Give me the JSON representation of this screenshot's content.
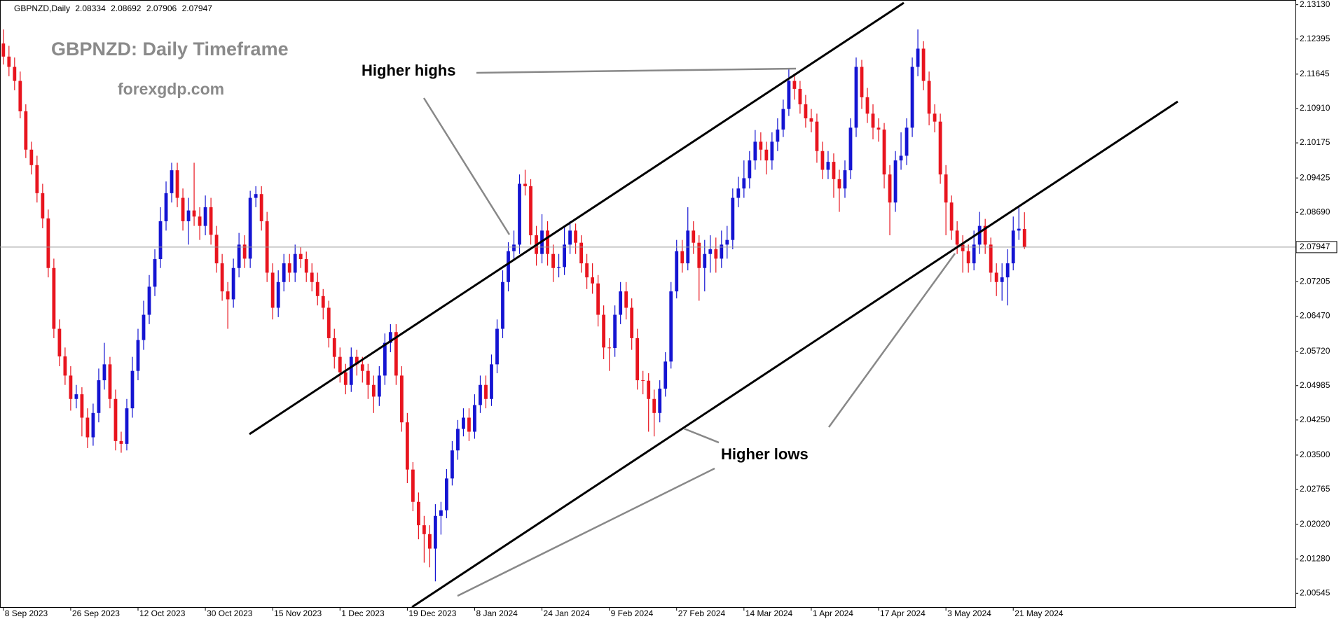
{
  "chart_data": {
    "type": "candlestick",
    "symbol": "GBPNZD,Daily",
    "title": "GBPNZD: Daily Timeframe",
    "subtitle": "forexgdp.com",
    "annotations": [
      "Higher highs",
      "Higher lows"
    ],
    "up_color": "#1414d2",
    "down_color": "#e8141e",
    "price_line": true,
    "ylim": [
      2.0025,
      2.1323
    ],
    "xlim": [
      -0.6,
      230.3
    ],
    "yticks": [
      {
        "value": 2.1313,
        "label": "2.13130"
      },
      {
        "value": 2.12395,
        "label": "2.12395"
      },
      {
        "value": 2.11645,
        "label": "2.11645"
      },
      {
        "value": 2.1091,
        "label": "2.10910"
      },
      {
        "value": 2.10175,
        "label": "2.10175"
      },
      {
        "value": 2.09425,
        "label": "2.09425"
      },
      {
        "value": 2.0869,
        "label": "2.08690"
      },
      {
        "value": 2.07205,
        "label": "2.07205"
      },
      {
        "value": 2.0647,
        "label": "2.06470"
      },
      {
        "value": 2.0572,
        "label": "2.05720"
      },
      {
        "value": 2.04985,
        "label": "2.04985"
      },
      {
        "value": 2.0425,
        "label": "2.04250"
      },
      {
        "value": 2.035,
        "label": "2.03500"
      },
      {
        "value": 2.02765,
        "label": "2.02765"
      },
      {
        "value": 2.0202,
        "label": "2.02020"
      },
      {
        "value": 2.0128,
        "label": "2.01280"
      },
      {
        "value": 2.00545,
        "label": "2.00545"
      }
    ],
    "xticks": [
      {
        "value": 0,
        "label": "8 Sep 2023"
      },
      {
        "value": 12,
        "label": "26 Sep 2023"
      },
      {
        "value": 24,
        "label": "12 Oct 2023"
      },
      {
        "value": 36,
        "label": "30 Oct 2023"
      },
      {
        "value": 48,
        "label": "15 Nov 2023"
      },
      {
        "value": 60,
        "label": "1 Dec 2023"
      },
      {
        "value": 72,
        "label": "19 Dec 2023"
      },
      {
        "value": 84,
        "label": "8 Jan 2024"
      },
      {
        "value": 96,
        "label": "24 Jan 2024"
      },
      {
        "value": 108,
        "label": "9 Feb 2024"
      },
      {
        "value": 120,
        "label": "27 Feb 2024"
      },
      {
        "value": 132,
        "label": "14 Mar 2024"
      },
      {
        "value": 144,
        "label": "1 Apr 2024"
      },
      {
        "value": 156,
        "label": "17 Apr 2024"
      },
      {
        "value": 168,
        "label": "3 May 2024"
      },
      {
        "value": 180,
        "label": "21 May 2024"
      }
    ],
    "ohlc": [
      [
        2.123,
        2.126,
        2.1185,
        2.1202
      ],
      [
        2.1202,
        2.1225,
        2.116,
        2.118
      ],
      [
        2.118,
        2.12,
        2.113,
        2.115
      ],
      [
        2.115,
        2.117,
        2.107,
        2.1085
      ],
      [
        2.1085,
        2.11,
        2.0985,
        2.1003
      ],
      [
        2.1003,
        2.102,
        2.095,
        2.097
      ],
      [
        2.097,
        2.099,
        2.089,
        2.091
      ],
      [
        2.091,
        2.093,
        2.0835,
        2.0856
      ],
      [
        2.0856,
        2.0875,
        2.073,
        2.075
      ],
      [
        2.075,
        2.077,
        2.06,
        2.062
      ],
      [
        2.062,
        2.064,
        2.054,
        2.0561
      ],
      [
        2.0561,
        2.058,
        2.05,
        2.052
      ],
      [
        2.052,
        2.054,
        2.0445,
        2.047
      ],
      [
        2.047,
        2.05,
        2.045,
        2.048
      ],
      [
        2.048,
        2.0495,
        2.039,
        2.043
      ],
      [
        2.043,
        2.045,
        2.0365,
        2.0388
      ],
      [
        2.0388,
        2.046,
        2.037,
        2.044
      ],
      [
        2.044,
        2.0535,
        2.042,
        2.051
      ],
      [
        2.051,
        2.059,
        2.049,
        2.0544
      ],
      [
        2.0544,
        2.056,
        2.045,
        2.047
      ],
      [
        2.047,
        2.049,
        2.036,
        2.038
      ],
      [
        2.038,
        2.04,
        2.0355,
        2.0374
      ],
      [
        2.0374,
        2.047,
        2.036,
        2.045
      ],
      [
        2.045,
        2.056,
        2.043,
        2.053
      ],
      [
        2.053,
        2.062,
        2.051,
        2.0596
      ],
      [
        2.0596,
        2.068,
        2.0575,
        2.065
      ],
      [
        2.065,
        2.0735,
        2.063,
        2.071
      ],
      [
        2.071,
        2.079,
        2.069,
        2.0769
      ],
      [
        2.0769,
        2.088,
        2.075,
        2.085
      ],
      [
        2.085,
        2.0935,
        2.083,
        2.091
      ],
      [
        2.091,
        2.0975,
        2.089,
        2.0959
      ],
      [
        2.0959,
        2.0975,
        2.088,
        2.09
      ],
      [
        2.09,
        2.092,
        2.083,
        2.085
      ],
      [
        2.085,
        2.09,
        2.08,
        2.0873
      ],
      [
        2.0873,
        2.0975,
        2.084,
        2.086
      ],
      [
        2.086,
        2.088,
        2.081,
        2.084
      ],
      [
        2.084,
        2.0905,
        2.082,
        2.088
      ],
      [
        2.088,
        2.09,
        2.08,
        2.0821
      ],
      [
        2.0821,
        2.084,
        2.074,
        2.076
      ],
      [
        2.076,
        2.078,
        2.068,
        2.07
      ],
      [
        2.07,
        2.072,
        2.062,
        2.0683
      ],
      [
        2.0683,
        2.077,
        2.0665,
        2.075
      ],
      [
        2.075,
        2.0825,
        2.073,
        2.08
      ],
      [
        2.08,
        2.082,
        2.075,
        2.077
      ],
      [
        2.077,
        2.0915,
        2.075,
        2.09
      ],
      [
        2.09,
        2.0925,
        2.088,
        2.0908
      ],
      [
        2.0908,
        2.0925,
        2.083,
        2.085
      ],
      [
        2.085,
        2.087,
        2.072,
        2.074
      ],
      [
        2.074,
        2.076,
        2.064,
        2.0665
      ],
      [
        2.0665,
        2.0745,
        2.0645,
        2.072
      ],
      [
        2.072,
        2.078,
        2.07,
        2.076
      ],
      [
        2.076,
        2.078,
        2.072,
        2.074
      ],
      [
        2.074,
        2.08,
        2.072,
        2.078
      ],
      [
        2.078,
        2.0795,
        2.075,
        2.0769
      ],
      [
        2.0769,
        2.0785,
        2.072,
        2.074
      ],
      [
        2.074,
        2.076,
        2.07,
        2.072
      ],
      [
        2.072,
        2.074,
        2.067,
        2.069
      ],
      [
        2.069,
        2.0705,
        2.064,
        2.0665
      ],
      [
        2.0665,
        2.068,
        2.058,
        2.06
      ],
      [
        2.06,
        2.062,
        2.0535,
        2.056
      ],
      [
        2.056,
        2.058,
        2.0505,
        2.0527
      ],
      [
        2.0527,
        2.0545,
        2.048,
        2.05
      ],
      [
        2.05,
        2.058,
        2.0485,
        2.056
      ],
      [
        2.056,
        2.0575,
        2.052,
        2.0544
      ],
      [
        2.0544,
        2.056,
        2.0505,
        2.053
      ],
      [
        2.053,
        2.0545,
        2.047,
        2.05
      ],
      [
        2.05,
        2.052,
        2.044,
        2.0475
      ],
      [
        2.0475,
        2.054,
        2.0455,
        2.052
      ],
      [
        2.052,
        2.061,
        2.05,
        2.059
      ],
      [
        2.059,
        2.063,
        2.057,
        2.0613
      ],
      [
        2.0613,
        2.063,
        2.05,
        2.052
      ],
      [
        2.052,
        2.054,
        2.04,
        2.042
      ],
      [
        2.042,
        2.044,
        2.029,
        2.0319
      ],
      [
        2.0319,
        2.0335,
        2.023,
        2.025
      ],
      [
        2.025,
        2.027,
        2.017,
        2.02
      ],
      [
        2.02,
        2.022,
        2.012,
        2.0181
      ],
      [
        2.0181,
        2.02,
        2.011,
        2.015
      ],
      [
        2.015,
        2.0245,
        2.008,
        2.022
      ],
      [
        2.022,
        2.025,
        2.018,
        2.0232
      ],
      [
        2.0232,
        2.032,
        2.0215,
        2.03
      ],
      [
        2.03,
        2.038,
        2.0285,
        2.036
      ],
      [
        2.036,
        2.0425,
        2.034,
        2.0406
      ],
      [
        2.0406,
        2.045,
        2.039,
        2.043
      ],
      [
        2.043,
        2.045,
        2.038,
        2.04
      ],
      [
        2.04,
        2.048,
        2.0385,
        2.0457
      ],
      [
        2.0457,
        2.052,
        2.044,
        2.05
      ],
      [
        2.05,
        2.052,
        2.045,
        2.047
      ],
      [
        2.047,
        2.0565,
        2.0455,
        2.0544
      ],
      [
        2.0544,
        2.064,
        2.0525,
        2.062
      ],
      [
        2.062,
        2.0745,
        2.06,
        2.072
      ],
      [
        2.072,
        2.0805,
        2.07,
        2.0786
      ],
      [
        2.0786,
        2.083,
        2.0765,
        2.08
      ],
      [
        2.08,
        2.095,
        2.078,
        2.093
      ],
      [
        2.093,
        2.096,
        2.0905,
        2.0925
      ],
      [
        2.0925,
        2.094,
        2.08,
        2.082
      ],
      [
        2.082,
        2.084,
        2.0755,
        2.078
      ],
      [
        2.078,
        2.0865,
        2.076,
        2.083
      ],
      [
        2.083,
        2.085,
        2.0755,
        2.078
      ],
      [
        2.078,
        2.08,
        2.072,
        2.075
      ],
      [
        2.075,
        2.078,
        2.073,
        2.0752
      ],
      [
        2.0752,
        2.084,
        2.0735,
        2.08
      ],
      [
        2.08,
        2.085,
        2.078,
        2.083
      ],
      [
        2.083,
        2.0845,
        2.078,
        2.0804
      ],
      [
        2.0804,
        2.082,
        2.074,
        2.076
      ],
      [
        2.076,
        2.078,
        2.0705,
        2.073
      ],
      [
        2.073,
        2.076,
        2.0695,
        2.0717
      ],
      [
        2.0717,
        2.0735,
        2.0625,
        2.065
      ],
      [
        2.065,
        2.067,
        2.0555,
        2.058
      ],
      [
        2.058,
        2.06,
        2.053,
        2.0579
      ],
      [
        2.0579,
        2.067,
        2.056,
        2.065
      ],
      [
        2.065,
        2.072,
        2.063,
        2.07
      ],
      [
        2.07,
        2.072,
        2.064,
        2.0665
      ],
      [
        2.0665,
        2.0685,
        2.0575,
        2.06
      ],
      [
        2.06,
        2.062,
        2.049,
        2.051
      ],
      [
        2.051,
        2.053,
        2.048,
        2.0509
      ],
      [
        2.0509,
        2.0525,
        2.04,
        2.047
      ],
      [
        2.047,
        2.049,
        2.039,
        2.044
      ],
      [
        2.044,
        2.051,
        2.042,
        2.0492
      ],
      [
        2.0492,
        2.057,
        2.0475,
        2.055
      ],
      [
        2.055,
        2.072,
        2.0535,
        2.07
      ],
      [
        2.07,
        2.081,
        2.0685,
        2.0786
      ],
      [
        2.0786,
        2.081,
        2.074,
        2.076
      ],
      [
        2.076,
        2.088,
        2.0745,
        2.083
      ],
      [
        2.083,
        2.085,
        2.078,
        2.0804
      ],
      [
        2.0804,
        2.082,
        2.068,
        2.075
      ],
      [
        2.075,
        2.081,
        2.07,
        2.078
      ],
      [
        2.078,
        2.082,
        2.074,
        2.079
      ],
      [
        2.079,
        2.0815,
        2.074,
        2.077
      ],
      [
        2.077,
        2.083,
        2.075,
        2.08
      ],
      [
        2.08,
        2.084,
        2.077,
        2.081
      ],
      [
        2.081,
        2.092,
        2.079,
        2.09
      ],
      [
        2.09,
        2.0945,
        2.088,
        2.092
      ],
      [
        2.092,
        2.098,
        2.09,
        2.0942
      ],
      [
        2.0942,
        2.1,
        2.092,
        2.098
      ],
      [
        2.098,
        2.1045,
        2.096,
        2.102
      ],
      [
        2.102,
        2.104,
        2.098,
        2.1003
      ],
      [
        2.1003,
        2.102,
        2.095,
        2.098
      ],
      [
        2.098,
        2.104,
        2.096,
        2.102
      ],
      [
        2.102,
        2.107,
        2.1,
        2.1046
      ],
      [
        2.1046,
        2.111,
        2.103,
        2.109
      ],
      [
        2.109,
        2.1175,
        2.1075,
        2.115
      ],
      [
        2.115,
        2.1165,
        2.111,
        2.1133
      ],
      [
        2.1133,
        2.115,
        2.108,
        2.11
      ],
      [
        2.11,
        2.112,
        2.105,
        2.107
      ],
      [
        2.107,
        2.109,
        2.104,
        2.1063
      ],
      [
        2.1063,
        2.108,
        2.0975,
        2.1
      ],
      [
        2.1,
        2.102,
        2.094,
        2.096
      ],
      [
        2.096,
        2.1,
        2.094,
        2.0977
      ],
      [
        2.0977,
        2.0995,
        2.09,
        2.094
      ],
      [
        2.094,
        2.096,
        2.087,
        2.092
      ],
      [
        2.092,
        2.098,
        2.09,
        2.0959
      ],
      [
        2.0959,
        2.107,
        2.094,
        2.105
      ],
      [
        2.105,
        2.12,
        2.103,
        2.118
      ],
      [
        2.118,
        2.1195,
        2.109,
        2.1115
      ],
      [
        2.1115,
        2.1135,
        2.106,
        2.108
      ],
      [
        2.108,
        2.11,
        2.1025,
        2.105
      ],
      [
        2.105,
        2.107,
        2.102,
        2.1046
      ],
      [
        2.1046,
        2.106,
        2.092,
        2.095
      ],
      [
        2.095,
        2.097,
        2.082,
        2.089
      ],
      [
        2.089,
        2.1,
        2.087,
        2.098
      ],
      [
        2.098,
        2.104,
        2.096,
        2.099
      ],
      [
        2.099,
        2.107,
        2.097,
        2.105
      ],
      [
        2.105,
        2.12,
        2.103,
        2.118
      ],
      [
        2.118,
        2.126,
        2.116,
        2.1219
      ],
      [
        2.1219,
        2.1235,
        2.113,
        2.115
      ],
      [
        2.115,
        2.117,
        2.1055,
        2.108
      ],
      [
        2.108,
        2.11,
        2.104,
        2.1063
      ],
      [
        2.1063,
        2.108,
        2.093,
        2.095
      ],
      [
        2.095,
        2.097,
        2.082,
        2.089
      ],
      [
        2.089,
        2.0905,
        2.081,
        2.083
      ],
      [
        2.083,
        2.085,
        2.078,
        2.08
      ],
      [
        2.08,
        2.082,
        2.074,
        2.0786
      ],
      [
        2.0786,
        2.08,
        2.074,
        2.076
      ],
      [
        2.076,
        2.083,
        2.0745,
        2.08
      ],
      [
        2.08,
        2.087,
        2.078,
        2.084
      ],
      [
        2.084,
        2.0855,
        2.078,
        2.08
      ],
      [
        2.08,
        2.0815,
        2.072,
        2.074
      ],
      [
        2.074,
        2.076,
        2.069,
        2.072
      ],
      [
        2.072,
        2.076,
        2.068,
        2.073
      ],
      [
        2.073,
        2.079,
        2.067,
        2.076
      ],
      [
        2.076,
        2.086,
        2.0745,
        2.083
      ],
      [
        2.083,
        2.088,
        2.081,
        2.0834
      ],
      [
        2.08334,
        2.08692,
        2.07906,
        2.07947
      ]
    ]
  }
}
